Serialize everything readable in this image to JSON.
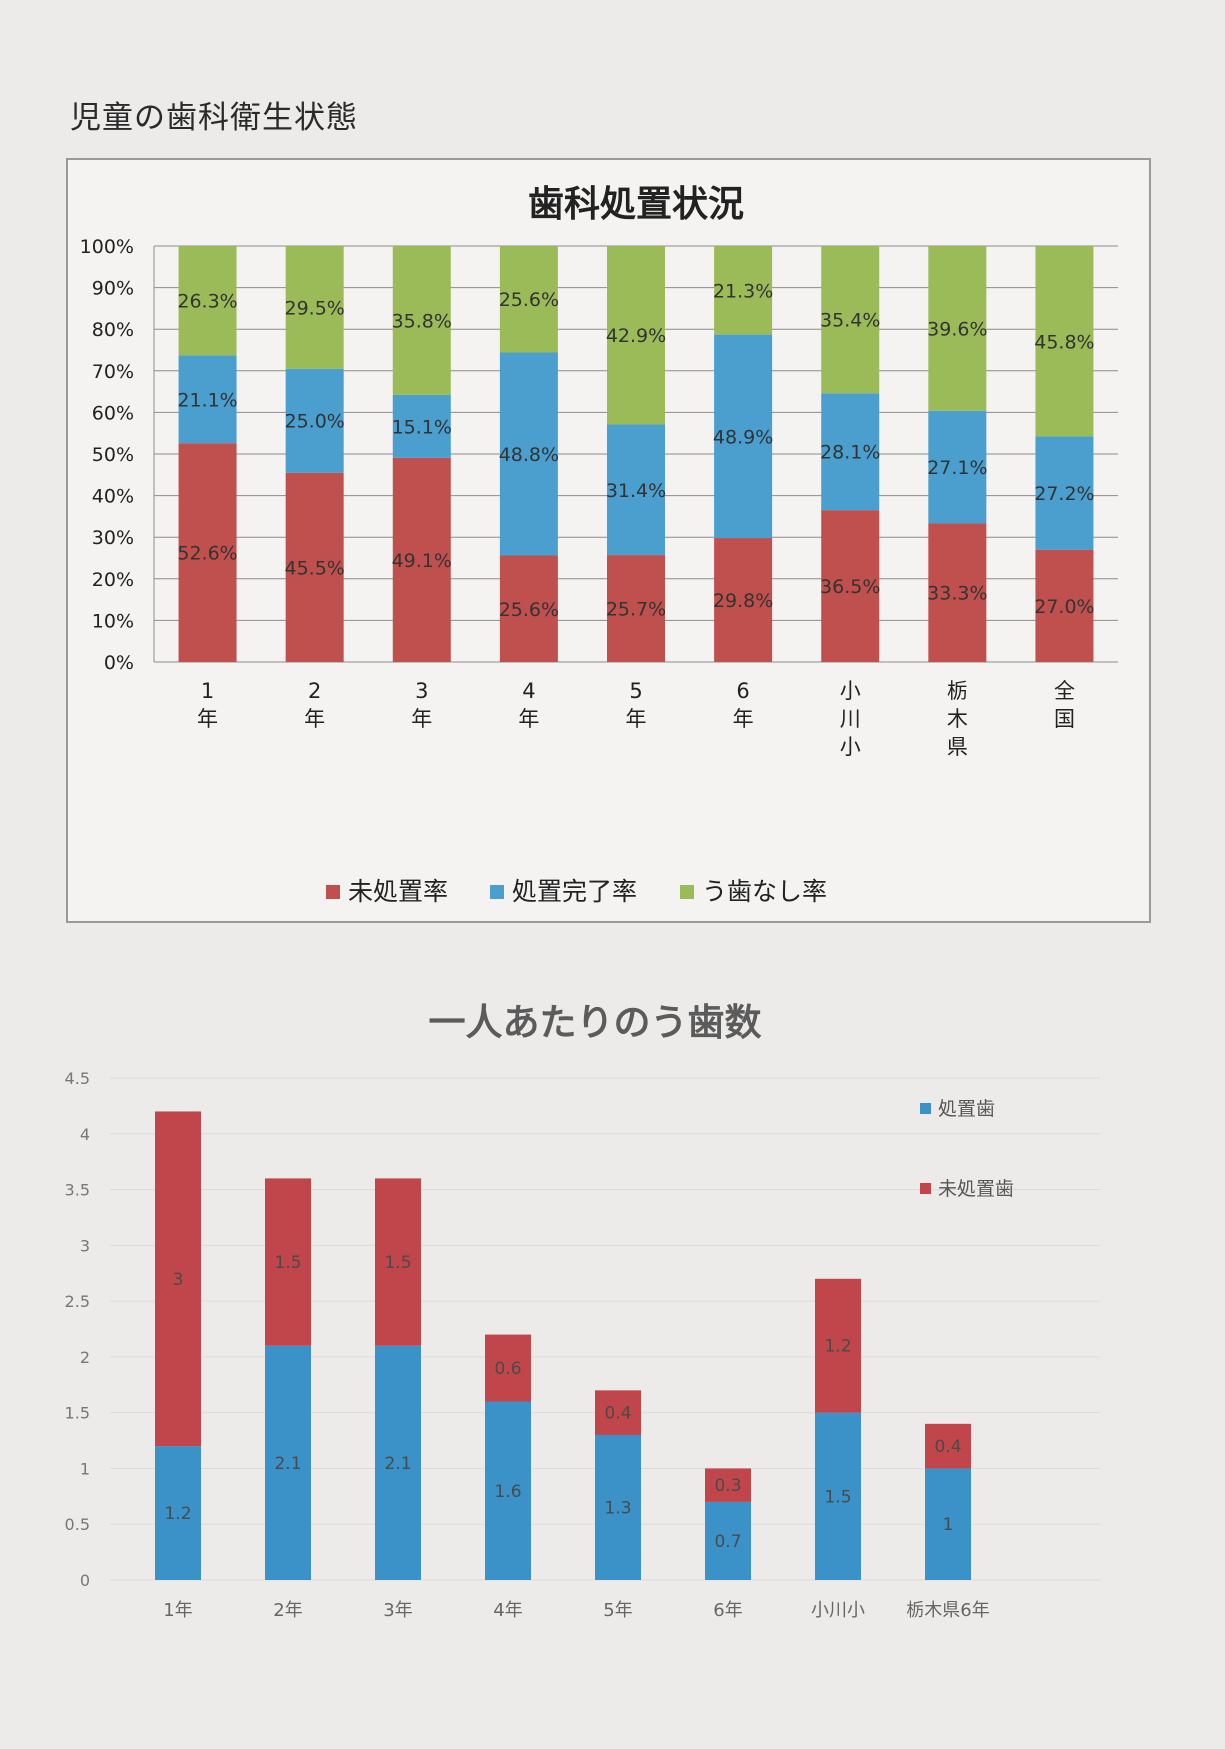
{
  "page": {
    "title": "児童の歯科衛生状態"
  },
  "chart_data": [
    {
      "type": "bar",
      "stacked": "percent",
      "title": "歯科処置状況",
      "categories": [
        "1\n年",
        "2\n年",
        "3\n年",
        "4\n年",
        "5\n年",
        "6\n年",
        "小\n川\n小",
        "栃\n木\n県",
        "全\n国"
      ],
      "series": [
        {
          "name": "未処置率",
          "color": "#c0504d",
          "values": [
            52.6,
            45.5,
            49.1,
            25.6,
            25.7,
            29.8,
            36.5,
            33.3,
            27.0
          ],
          "labels": [
            "52.6%",
            "45.5%",
            "49.1%",
            "25.6%",
            "25.7%",
            "29.8%",
            "36.5%",
            "33.3%",
            "27.0%"
          ]
        },
        {
          "name": "処置完了率",
          "color": "#4a9fcf",
          "values": [
            21.1,
            25.0,
            15.1,
            48.8,
            31.4,
            48.9,
            28.1,
            27.1,
            27.2
          ],
          "labels": [
            "21.1%",
            "25.0%",
            "15.1%",
            "48.8%",
            "31.4%",
            "48.9%",
            "28.1%",
            "27.1%",
            "27.2%"
          ]
        },
        {
          "name": "う歯なし率",
          "color": "#9bbb59",
          "values": [
            26.3,
            29.5,
            35.8,
            25.6,
            42.9,
            21.3,
            35.4,
            39.6,
            45.8
          ],
          "labels": [
            "26.3%",
            "29.5%",
            "35.8%",
            "25.6%",
            "42.9%",
            "21.3%",
            "35.4%",
            "39.6%",
            "45.8%"
          ]
        }
      ],
      "ylim": [
        0,
        100
      ],
      "yticks": [
        "0%",
        "10%",
        "20%",
        "30%",
        "40%",
        "50%",
        "60%",
        "70%",
        "80%",
        "90%",
        "100%"
      ],
      "grid": true,
      "legend": "bottom"
    },
    {
      "type": "bar",
      "stacked": true,
      "title": "一人あたりのう歯数",
      "categories": [
        "1年",
        "2年",
        "3年",
        "4年",
        "5年",
        "6年",
        "小川小",
        "栃木県6年"
      ],
      "series": [
        {
          "name": "処置歯",
          "color": "#3a92c8",
          "values": [
            1.2,
            2.1,
            2.1,
            1.6,
            1.3,
            0.7,
            1.5,
            1
          ],
          "labels": [
            "1.2",
            "2.1",
            "2.1",
            "1.6",
            "1.3",
            "0.7",
            "1.5",
            "1"
          ]
        },
        {
          "name": "未処置歯",
          "color": "#c0464b",
          "values": [
            3,
            1.5,
            1.5,
            0.6,
            0.4,
            0.3,
            1.2,
            0.4
          ],
          "labels": [
            "3",
            "1.5",
            "1.5",
            "0.6",
            "0.4",
            "0.3",
            "1.2",
            "0.4"
          ]
        }
      ],
      "ylim": [
        0,
        4.5
      ],
      "yticks": [
        "0",
        "0.5",
        "1",
        "1.5",
        "2",
        "2.5",
        "3",
        "3.5",
        "4",
        "4.5"
      ],
      "grid": true,
      "legend": "top-right"
    }
  ]
}
